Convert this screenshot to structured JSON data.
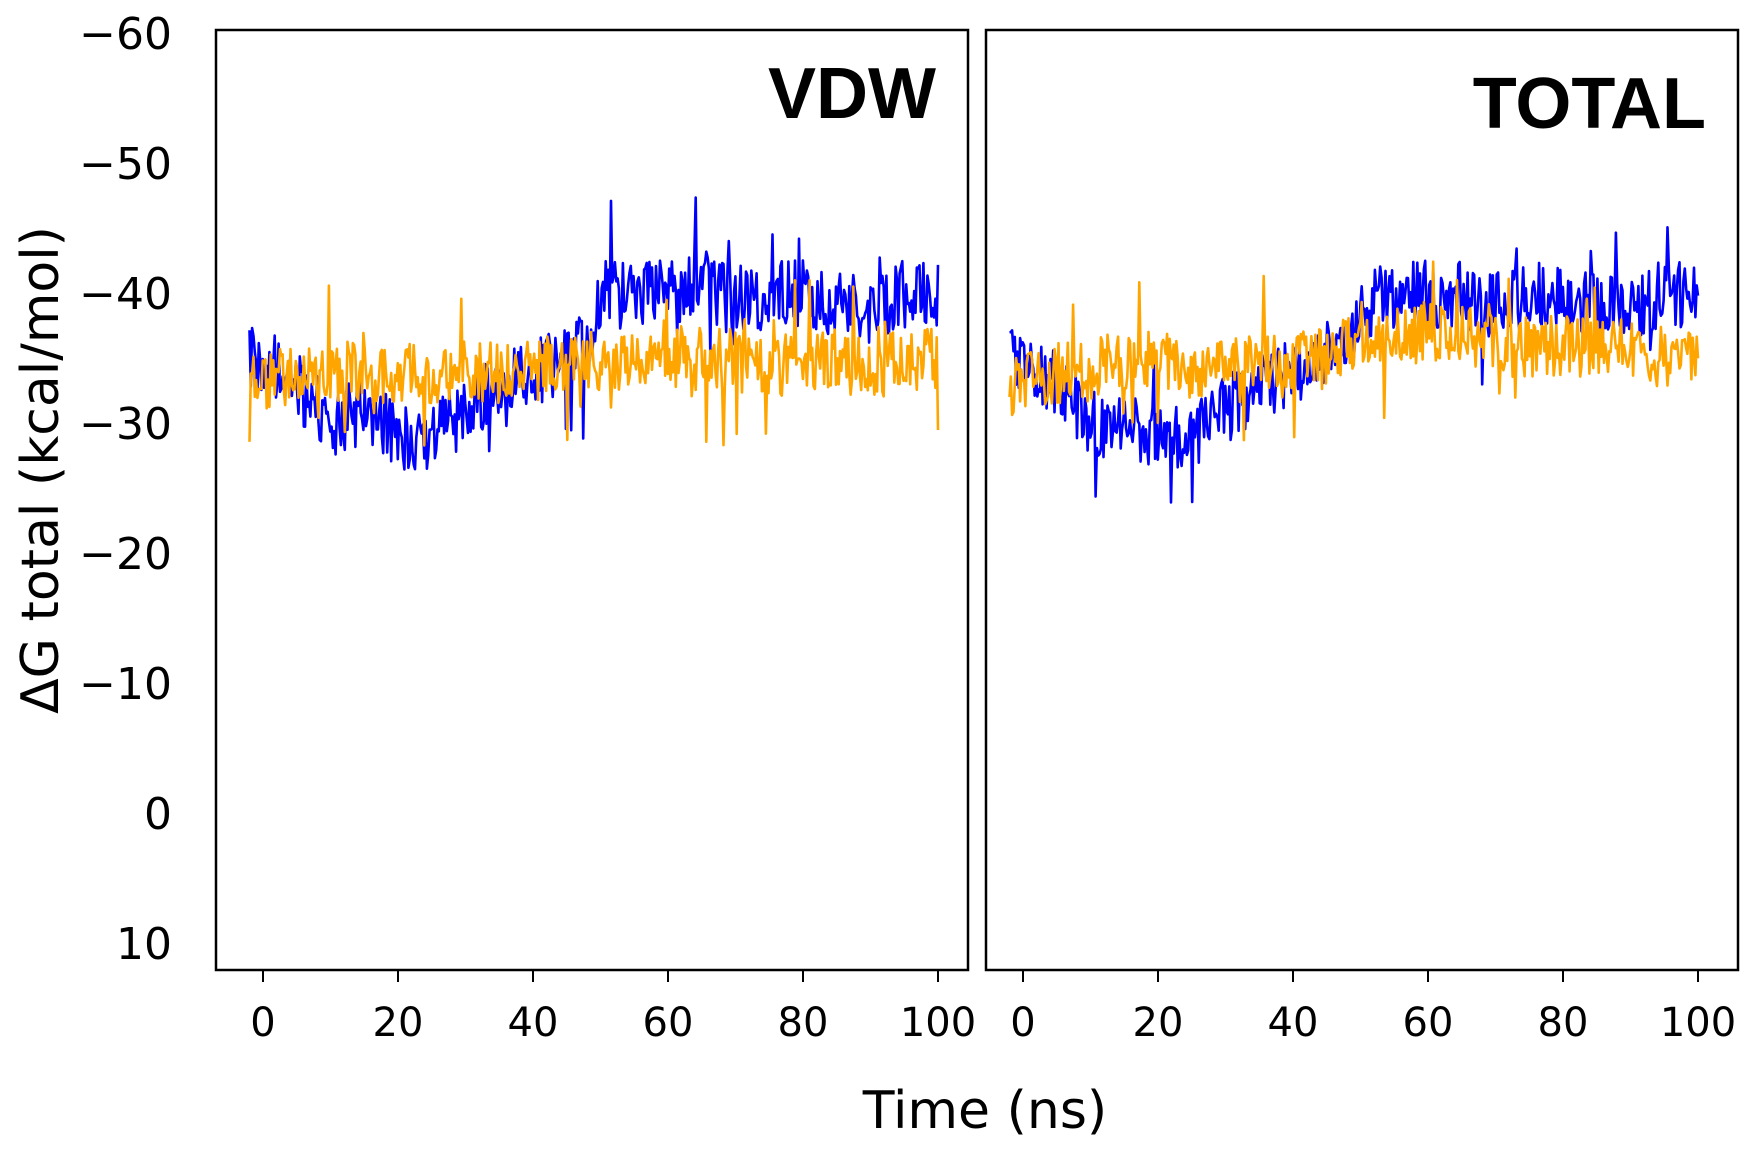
{
  "chart_data": [
    {
      "type": "line",
      "title": "VDW",
      "xlabel": "Time (ns)",
      "ylabel": "ΔG total (kcal/mol)",
      "x_range": [
        0,
        100
      ],
      "ylim": [
        10,
        -60
      ],
      "y_inverted": true,
      "x_ticks": [
        "0",
        "20",
        "40",
        "60",
        "80",
        "100"
      ],
      "y_ticks": [
        "−60",
        "−50",
        "−40",
        "−30",
        "−20",
        "−10",
        "0",
        "10"
      ],
      "grid": false,
      "series": [
        {
          "name": "blue",
          "color": "#0000ff",
          "x": [
            0,
            5,
            10,
            15,
            20,
            25,
            30,
            35,
            40,
            45,
            48,
            50,
            55,
            60,
            65,
            70,
            75,
            80,
            85,
            90,
            95,
            100
          ],
          "y": [
            -35,
            -33,
            -30,
            -31,
            -29,
            -29,
            -31,
            -33,
            -34,
            -35,
            -36,
            -40,
            -40,
            -40,
            -41,
            -39,
            -40,
            -40,
            -39,
            -39,
            -40,
            -40
          ]
        },
        {
          "name": "orange",
          "color": "#ffa500",
          "x": [
            0,
            5,
            10,
            15,
            20,
            25,
            30,
            35,
            40,
            45,
            48,
            50,
            55,
            60,
            65,
            70,
            75,
            80,
            85,
            90,
            95,
            100
          ],
          "y": [
            -33,
            -34,
            -34,
            -34,
            -34,
            -34,
            -34,
            -34,
            -34,
            -35,
            -35,
            -35,
            -35,
            -35,
            -35,
            -35,
            -34,
            -35,
            -35,
            -34,
            -35,
            -35
          ]
        }
      ]
    },
    {
      "type": "line",
      "title": "TOTAL",
      "xlabel": "Time (ns)",
      "ylabel": "ΔG total (kcal/mol)",
      "x_range": [
        0,
        100
      ],
      "ylim": [
        10,
        -60
      ],
      "y_inverted": true,
      "x_ticks": [
        "0",
        "20",
        "40",
        "60",
        "80",
        "100"
      ],
      "y_ticks": [
        "−60",
        "−50",
        "−40",
        "−30",
        "−20",
        "−10",
        "0",
        "10"
      ],
      "grid": false,
      "series": [
        {
          "name": "blue",
          "color": "#0000ff",
          "x": [
            0,
            5,
            10,
            15,
            20,
            25,
            30,
            35,
            40,
            45,
            48,
            50,
            55,
            60,
            65,
            70,
            75,
            80,
            85,
            90,
            95,
            100
          ],
          "y": [
            -35,
            -33,
            -30,
            -30,
            -29,
            -29,
            -31,
            -33,
            -34,
            -35,
            -36,
            -39,
            -40,
            -40,
            -40,
            -39,
            -40,
            -40,
            -39,
            -39,
            -40,
            -40
          ]
        },
        {
          "name": "orange",
          "color": "#ffa500",
          "x": [
            0,
            5,
            10,
            15,
            20,
            25,
            30,
            35,
            40,
            45,
            48,
            50,
            55,
            60,
            65,
            70,
            75,
            80,
            85,
            90,
            95,
            100
          ],
          "y": [
            -33,
            -34,
            -34,
            -35,
            -35,
            -34,
            -34,
            -35,
            -35,
            -35,
            -36,
            -37,
            -37,
            -37,
            -37,
            -36,
            -36,
            -36,
            -36,
            -36,
            -35,
            -36
          ]
        }
      ]
    }
  ],
  "shared": {
    "xlabel": "Time (ns)",
    "ylabel": "ΔG total (kcal/mol)"
  }
}
